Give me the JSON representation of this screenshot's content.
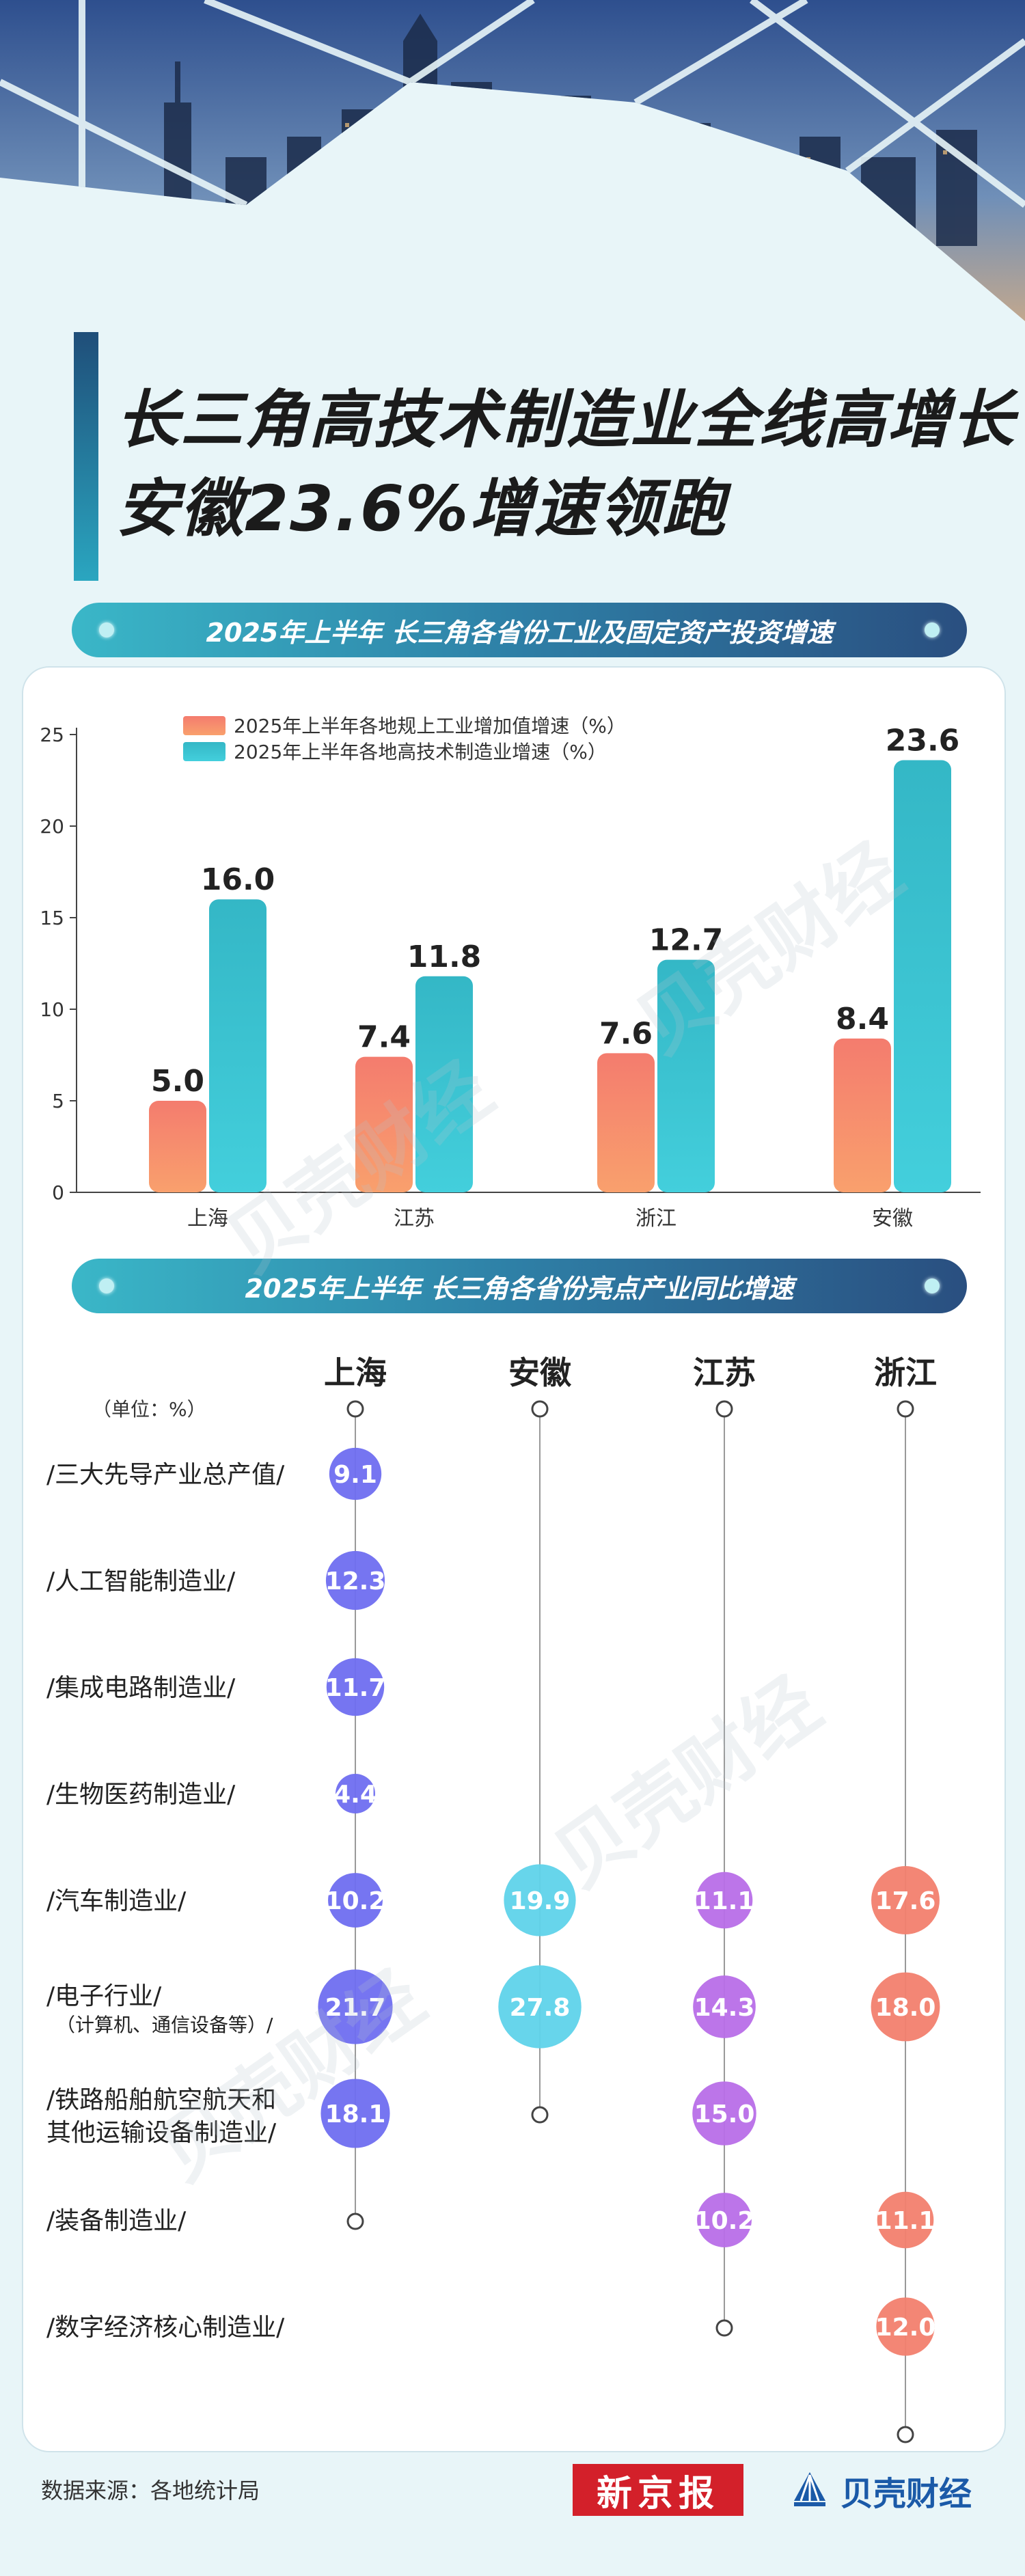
{
  "title": {
    "line1": "长三角高技术制造业全线高增长",
    "line2": "安徽23.6%增速领跑"
  },
  "section1": {
    "heading": "2025年上半年 长三角各省份工业及固定资产投资增速"
  },
  "section2": {
    "heading": "2025年上半年 长三角各省份亮点产业同比增速",
    "unit": "（单位：%）"
  },
  "colors": {
    "industrial_top": "#f47c6e",
    "industrial_bottom": "#f9a06d",
    "hitech_top": "#34b7c6",
    "hitech_bottom": "#43cfdc",
    "shanghai": "#6f6ef0",
    "anhui": "#5fd3ea",
    "jiangsu": "#b86ee8",
    "zhejiang": "#f2806e"
  },
  "chart_data": [
    {
      "type": "bar",
      "categories": [
        "上海",
        "江苏",
        "浙江",
        "安徽"
      ],
      "series": [
        {
          "name": "2025年上半年各地规上工业增加值增速（%）",
          "values": [
            5.0,
            7.4,
            7.6,
            8.4
          ]
        },
        {
          "name": "2025年上半年各地高技术制造业增速（%）",
          "values": [
            16.0,
            11.8,
            12.7,
            23.6
          ]
        }
      ],
      "ylim": [
        0,
        25
      ],
      "yticks": [
        0,
        5,
        10,
        15,
        20,
        25
      ],
      "legend_position": "top-left",
      "value_labels": [
        "5.0",
        "7.4",
        "7.6",
        "8.4",
        "16.0",
        "11.8",
        "12.7",
        "23.6"
      ]
    },
    {
      "type": "bubble",
      "columns": [
        "上海",
        "安徽",
        "江苏",
        "浙江"
      ],
      "rows": [
        "/三大先导产业总产值/",
        "/人工智能制造业/",
        "/集成电路制造业/",
        "/生物医药制造业/",
        "/汽车制造业/",
        "/电子行业/",
        "/铁路船舶航空航天和其他运输设备制造业/",
        "/装备制造业/",
        "/数字经济核心制造业/"
      ],
      "row_labels": [
        [
          "/三大先导产业总产值/"
        ],
        [
          "/人工智能制造业/"
        ],
        [
          "/集成电路制造业/"
        ],
        [
          "/生物医药制造业/"
        ],
        [
          "/汽车制造业/"
        ],
        [
          "/电子行业/",
          "（计算机、通信设备等）/"
        ],
        [
          "/铁路船舶航空航天和",
          "其他运输设备制造业/"
        ],
        [
          "/装备制造业/"
        ],
        [
          "/数字经济核心制造业/"
        ]
      ],
      "values": {
        "上海": [
          9.1,
          12.3,
          11.7,
          4.4,
          10.2,
          21.7,
          18.1,
          null,
          null
        ],
        "安徽": [
          null,
          null,
          null,
          null,
          19.9,
          27.8,
          null,
          null,
          null
        ],
        "江苏": [
          null,
          null,
          null,
          null,
          11.1,
          14.3,
          15.0,
          10.2,
          null
        ],
        "浙江": [
          null,
          null,
          null,
          null,
          17.6,
          18.0,
          null,
          11.1,
          12.0
        ]
      },
      "labels": {
        "上海": [
          "9.1",
          "12.3",
          "11.7",
          "4.4",
          "10.2",
          "21.7",
          "18.1",
          null,
          null
        ],
        "安徽": [
          null,
          null,
          null,
          null,
          "19.9",
          "27.8",
          null,
          null,
          null
        ],
        "江苏": [
          null,
          null,
          null,
          null,
          "11.1",
          "14.3",
          "15.0",
          "10.2",
          null
        ],
        "浙江": [
          null,
          null,
          null,
          null,
          "17.6",
          "18.0",
          null,
          "11.1",
          "12.0"
        ]
      }
    }
  ],
  "footer": {
    "source": "数据来源：各地统计局",
    "logo_xjb": "新京报",
    "logo_bk": "贝壳财经"
  },
  "watermark": "贝壳财经"
}
